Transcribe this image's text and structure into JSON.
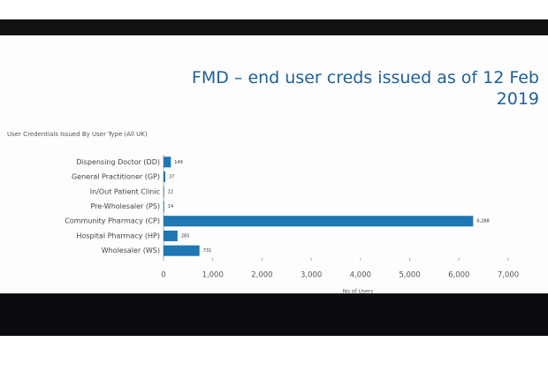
{
  "chart_data": {
    "type": "barh",
    "title": "FMD – end user creds issued as of 12 Feb 2019",
    "subtitle": "User Credentials Issued By User Type (All UK)",
    "x_label": "No of Users",
    "categories": [
      "Dispensing Doctor (DD)",
      "General Practitioner (GP)",
      "In/Out Patient Clinic",
      "Pre-Wholesaler (PS)",
      "Community Pharmacy (CP)",
      "Hospital Pharmacy (HP)",
      "Wholesaler (WS)"
    ],
    "values": [
      149,
      37,
      12,
      14,
      6288,
      285,
      731
    ],
    "value_labels": [
      "149",
      "37",
      "12",
      "14",
      "6,288",
      "285",
      "731"
    ],
    "color": "#1f77b4",
    "xlim": [
      0,
      7000
    ],
    "xticks": [
      0,
      {
        "value": 1000,
        "label": "1,000"
      },
      {
        "value": 2000,
        "label": "2,000"
      },
      {
        "value": 3000,
        "label": "3,000"
      },
      {
        "value": 4000,
        "label": "4,000"
      },
      {
        "value": 5000,
        "label": "5,000"
      },
      {
        "value": 6000,
        "label": "6,000"
      },
      {
        "value": 7000,
        "label": "7,000"
      }
    ],
    "grid": false
  }
}
